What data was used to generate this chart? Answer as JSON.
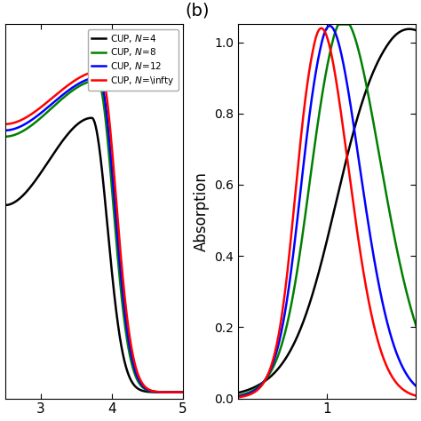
{
  "title_b": "(b)",
  "ylabel": "Absorption",
  "legend_labels": [
    "CUP, $\\mathit{N}$=4",
    "CUP, $\\mathit{N}$=8",
    "CUP, $\\mathit{N}$=12",
    "CUP, $\\mathit{N}$=\\infty"
  ],
  "colors": [
    "black",
    "green",
    "blue",
    "red"
  ],
  "left_xlim": [
    2.5,
    5.0
  ],
  "right_xlim": [
    0.5,
    1.5
  ],
  "right_ylim": [
    0.0,
    1.05
  ],
  "right_yticks": [
    0.0,
    0.2,
    0.4,
    0.6,
    0.8,
    1.0
  ],
  "left_xticks": [
    3,
    4,
    5
  ],
  "right_xticks": [
    1
  ],
  "linewidth": 1.8
}
